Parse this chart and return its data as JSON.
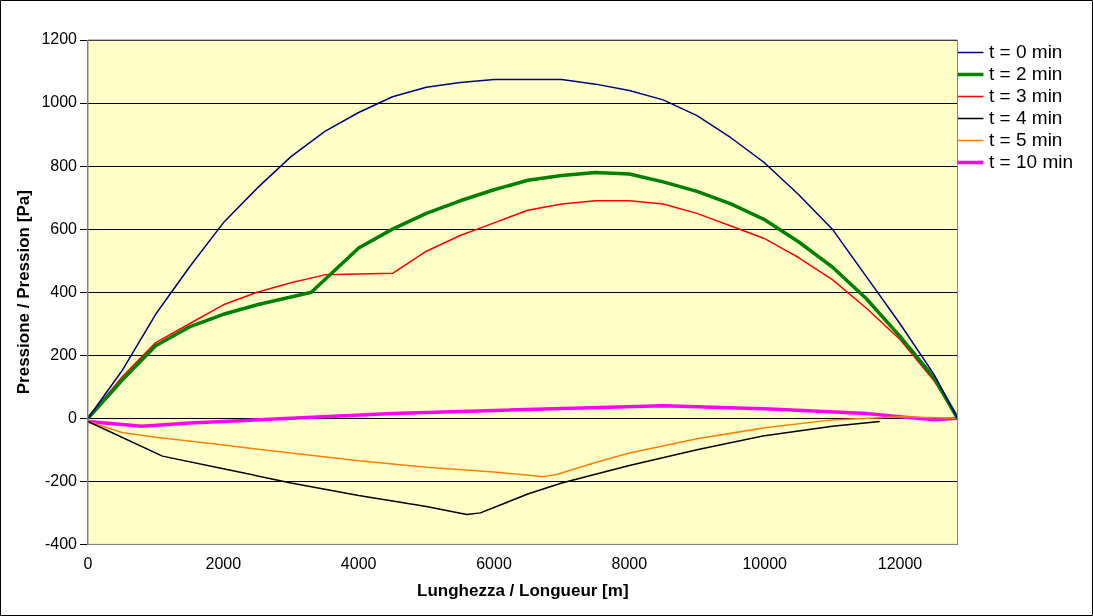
{
  "chart_data": {
    "type": "line",
    "xlabel": "Lunghezza / Longueur [m]",
    "ylabel": "Pressione / Pression [Pa]",
    "xlim": [
      0,
      12850
    ],
    "xticks": [
      0,
      2000,
      4000,
      6000,
      8000,
      10000,
      12000
    ],
    "ylim": [
      -400,
      1200
    ],
    "yticks": [
      -400,
      -200,
      0,
      200,
      400,
      600,
      800,
      1000,
      1200
    ],
    "grid": "y",
    "legend": "top right",
    "marker": "none",
    "line_style": "solid",
    "series": [
      {
        "name": "t = 0 min",
        "color": "#000080",
        "x": [
          0,
          500,
          1000,
          1500,
          2000,
          2500,
          3000,
          3500,
          4000,
          4500,
          5000,
          5500,
          6000,
          7000,
          7500,
          8000,
          8500,
          9000,
          9500,
          10000,
          10500,
          11000,
          11500,
          12000,
          12500,
          12850
        ],
        "values": [
          0,
          150,
          330,
          480,
          620,
          730,
          830,
          910,
          970,
          1020,
          1050,
          1065,
          1075,
          1075,
          1060,
          1040,
          1010,
          960,
          890,
          810,
          710,
          600,
          450,
          300,
          140,
          0
        ]
      },
      {
        "name": "t = 2 min",
        "color": "#008000",
        "x": [
          0,
          500,
          1000,
          1500,
          2000,
          2500,
          3000,
          3300,
          3600,
          4000,
          4500,
          5000,
          5500,
          6000,
          6500,
          7000,
          7500,
          8000,
          8500,
          9000,
          9500,
          10000,
          10500,
          11000,
          11500,
          12000,
          12500,
          12850
        ],
        "values": [
          0,
          120,
          230,
          290,
          330,
          360,
          385,
          400,
          460,
          540,
          600,
          650,
          690,
          725,
          755,
          770,
          780,
          775,
          750,
          720,
          680,
          630,
          560,
          480,
          380,
          260,
          130,
          0
        ]
      },
      {
        "name": "t = 3 min",
        "color": "#ff0000",
        "x": [
          0,
          500,
          1000,
          1500,
          2000,
          2500,
          3000,
          3500,
          4500,
          5000,
          5500,
          6000,
          6500,
          7000,
          7500,
          8000,
          8500,
          9000,
          9500,
          10000,
          10500,
          11000,
          11500,
          12000,
          12500,
          12850
        ],
        "values": [
          0,
          130,
          240,
          300,
          360,
          400,
          430,
          455,
          460,
          530,
          580,
          620,
          660,
          680,
          690,
          690,
          680,
          650,
          610,
          570,
          510,
          440,
          350,
          250,
          120,
          0
        ]
      },
      {
        "name": "t = 4 min",
        "color": "#000000",
        "x": [
          0,
          1100,
          2000,
          3000,
          4000,
          5000,
          5600,
          5800,
          6500,
          7000,
          8000,
          9000,
          10000,
          11000,
          11700
        ],
        "values": [
          -10,
          -120,
          -160,
          -205,
          -245,
          -280,
          -305,
          -300,
          -240,
          -205,
          -150,
          -100,
          -55,
          -25,
          -10
        ]
      },
      {
        "name": "t = 5 min",
        "color": "#ff8000",
        "x": [
          0,
          500,
          1000,
          2000,
          3000,
          4000,
          5000,
          6000,
          6700,
          6900,
          7500,
          8000,
          9000,
          10000,
          11000,
          12000,
          12850
        ],
        "values": [
          -10,
          -45,
          -60,
          -85,
          -110,
          -135,
          -155,
          -170,
          -185,
          -180,
          -140,
          -110,
          -65,
          -30,
          -5,
          5,
          0
        ]
      },
      {
        "name": "t = 10 min",
        "color": "#ff00ff",
        "x": [
          0,
          800,
          1500,
          3000,
          4500,
          6000,
          8500,
          10000,
          11500,
          12500,
          12850
        ],
        "values": [
          -10,
          -25,
          -15,
          0,
          15,
          25,
          40,
          30,
          15,
          -5,
          0
        ]
      }
    ]
  }
}
